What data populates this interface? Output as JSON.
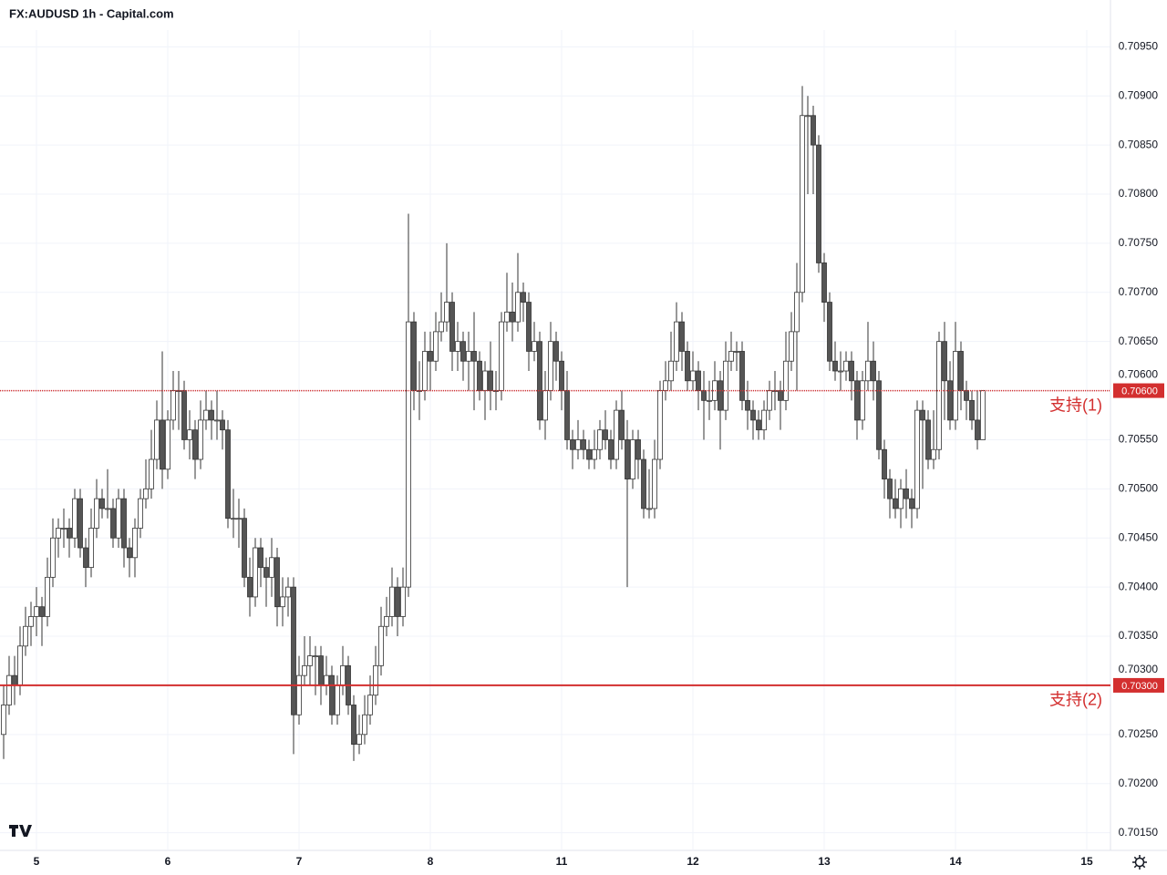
{
  "chart_data": {
    "type": "candlestick",
    "title": "FX:AUDUSD 1h - Capital.com",
    "up_color": "#ffffff",
    "down_color": "#555555",
    "wick_color": "#333333",
    "grid": true,
    "ylim": [
      0.70132,
      0.70967
    ],
    "yticks": [
      {
        "value": 0.7095,
        "label": "0.70950"
      },
      {
        "value": 0.709,
        "label": "0.70900"
      },
      {
        "value": 0.7085,
        "label": "0.70850"
      },
      {
        "value": 0.708,
        "label": "0.70800"
      },
      {
        "value": 0.7075,
        "label": "0.70750"
      },
      {
        "value": 0.707,
        "label": "0.70700"
      },
      {
        "value": 0.7065,
        "label": "0.70650"
      },
      {
        "value": 0.706,
        "label": "0.70600"
      },
      {
        "value": 0.7055,
        "label": "0.70550"
      },
      {
        "value": 0.705,
        "label": "0.70500"
      },
      {
        "value": 0.7045,
        "label": "0.70450"
      },
      {
        "value": 0.704,
        "label": "0.70400"
      },
      {
        "value": 0.7035,
        "label": "0.70350"
      },
      {
        "value": 0.703,
        "label": "0.70300"
      },
      {
        "value": 0.7025,
        "label": "0.70250"
      },
      {
        "value": 0.702,
        "label": "0.70200"
      },
      {
        "value": 0.7015,
        "label": "0.70150"
      }
    ],
    "xticks": [
      {
        "value": 6,
        "label": "5"
      },
      {
        "value": 30,
        "label": "6"
      },
      {
        "value": 54,
        "label": "7"
      },
      {
        "value": 78,
        "label": "8"
      },
      {
        "value": 102,
        "label": "11"
      },
      {
        "value": 126,
        "label": "12"
      },
      {
        "value": 150,
        "label": "13"
      },
      {
        "value": 174,
        "label": "14"
      },
      {
        "value": 198,
        "label": "15"
      }
    ],
    "hlines": [
      {
        "value": 0.706,
        "label": "支持(1)",
        "value_label": "0.70600",
        "color": "#d32f2f",
        "style": "dotted"
      },
      {
        "value": 0.703,
        "label": "支持(2)",
        "value_label": "0.70300",
        "color": "#d32f2f",
        "style": "solid"
      }
    ],
    "open": [
      0.7025,
      0.7028,
      0.7031,
      0.703,
      0.7034,
      0.7036,
      0.7037,
      0.7038,
      0.7037,
      0.7041,
      0.7045,
      0.7046,
      0.7046,
      0.7045,
      0.7049,
      0.7044,
      0.7042,
      0.7046,
      0.7049,
      0.7048,
      0.7048,
      0.7045,
      0.7049,
      0.7044,
      0.7043,
      0.7046,
      0.7049,
      0.705,
      0.7053,
      0.7057,
      0.7052,
      0.7057,
      0.706,
      0.706,
      0.7055,
      0.7056,
      0.7053,
      0.7057,
      0.7058,
      0.7057,
      0.7057,
      0.7056,
      0.7047,
      0.7047,
      0.7047,
      0.7041,
      0.7039,
      0.7044,
      0.7042,
      0.7041,
      0.7043,
      0.7038,
      0.7039,
      0.704,
      0.7027,
      0.7031,
      0.7032,
      0.7033,
      0.7033,
      0.703,
      0.7031,
      0.7027,
      0.703,
      0.7032,
      0.7028,
      0.7024,
      0.7025,
      0.7027,
      0.7029,
      0.7032,
      0.7036,
      0.7037,
      0.704,
      0.7037,
      0.704,
      0.7067,
      0.706,
      0.706,
      0.7064,
      0.7063,
      0.7066,
      0.7067,
      0.7069,
      0.7064,
      0.7065,
      0.7063,
      0.7064,
      0.7063,
      0.706,
      0.7062,
      0.706,
      0.706,
      0.7067,
      0.7068,
      0.7067,
      0.707,
      0.7069,
      0.7064,
      0.7065,
      0.7057,
      0.706,
      0.7065,
      0.7063,
      0.706,
      0.7055,
      0.7054,
      0.7055,
      0.7054,
      0.7053,
      0.7054,
      0.7056,
      0.7055,
      0.7053,
      0.7058,
      0.7055,
      0.7051,
      0.7055,
      0.7053,
      0.7048,
      0.7048,
      0.7053,
      0.706,
      0.7061,
      0.7063,
      0.7067,
      0.7064,
      0.7061,
      0.7062,
      0.706,
      0.7059,
      0.7059,
      0.7061,
      0.7058,
      0.7063,
      0.7064,
      0.7064,
      0.7059,
      0.7058,
      0.7057,
      0.7056,
      0.7058,
      0.706,
      0.706,
      0.7059,
      0.7063,
      0.7066,
      0.707,
      0.7088,
      0.7088,
      0.7085,
      0.7073,
      0.7069,
      0.7063,
      0.7062,
      0.7062,
      0.7063,
      0.7061,
      0.7057,
      0.7061,
      0.7063,
      0.7061,
      0.7054,
      0.7051,
      0.7049,
      0.7048,
      0.705,
      0.7049,
      0.7048,
      0.7058,
      0.7057,
      0.7053,
      0.7054,
      0.7065,
      0.7061,
      0.7057,
      0.7064,
      0.706,
      0.7059,
      0.7057,
      0.7055
    ],
    "high": [
      0.703,
      0.7033,
      0.7033,
      0.7036,
      0.7038,
      0.70385,
      0.704,
      0.7039,
      0.7043,
      0.7047,
      0.7047,
      0.7048,
      0.7047,
      0.705,
      0.705,
      0.7045,
      0.7048,
      0.7051,
      0.705,
      0.7052,
      0.7049,
      0.705,
      0.705,
      0.7045,
      0.7047,
      0.705,
      0.7053,
      0.7056,
      0.7059,
      0.7064,
      0.7058,
      0.7062,
      0.7062,
      0.7061,
      0.7058,
      0.7057,
      0.7059,
      0.706,
      0.7059,
      0.706,
      0.7058,
      0.7057,
      0.705,
      0.7049,
      0.7048,
      0.7043,
      0.7045,
      0.7045,
      0.7043,
      0.7045,
      0.7044,
      0.7041,
      0.7041,
      0.7041,
      0.7033,
      0.7035,
      0.7035,
      0.7034,
      0.7034,
      0.7033,
      0.7032,
      0.7031,
      0.7034,
      0.7033,
      0.7029,
      0.7027,
      0.7029,
      0.7031,
      0.7034,
      0.7038,
      0.7039,
      0.7042,
      0.7041,
      0.7042,
      0.7078,
      0.7068,
      0.7063,
      0.7066,
      0.7066,
      0.7068,
      0.707,
      0.7075,
      0.707,
      0.7067,
      0.7066,
      0.7066,
      0.7068,
      0.7064,
      0.7063,
      0.7065,
      0.7062,
      0.7068,
      0.7072,
      0.7071,
      0.7074,
      0.7071,
      0.707,
      0.7067,
      0.7066,
      0.7062,
      0.7067,
      0.7066,
      0.7064,
      0.7062,
      0.7056,
      0.7057,
      0.7056,
      0.7055,
      0.7056,
      0.7057,
      0.7058,
      0.7056,
      0.7059,
      0.706,
      0.7057,
      0.7056,
      0.7056,
      0.7054,
      0.7052,
      0.7055,
      0.7061,
      0.7063,
      0.7066,
      0.7069,
      0.7068,
      0.7065,
      0.7064,
      0.7063,
      0.7062,
      0.7061,
      0.7063,
      0.7062,
      0.7065,
      0.7066,
      0.7065,
      0.7065,
      0.7061,
      0.7059,
      0.7058,
      0.7059,
      0.7061,
      0.7062,
      0.7061,
      0.7066,
      0.7068,
      0.7073,
      0.7091,
      0.709,
      0.7089,
      0.7086,
      0.7074,
      0.707,
      0.7065,
      0.7064,
      0.7064,
      0.7064,
      0.7062,
      0.7062,
      0.7067,
      0.7065,
      0.7062,
      0.7055,
      0.7052,
      0.7051,
      0.7051,
      0.7052,
      0.705,
      0.7059,
      0.7059,
      0.7058,
      0.7058,
      0.7066,
      0.7067,
      0.7063,
      0.7067,
      0.7065,
      0.7061,
      0.706,
      0.706,
      0.706
    ],
    "low": [
      0.70225,
      0.7027,
      0.7028,
      0.7029,
      0.7033,
      0.7034,
      0.7035,
      0.7034,
      0.7036,
      0.704,
      0.7043,
      0.7044,
      0.7043,
      0.7044,
      0.7043,
      0.704,
      0.7041,
      0.7045,
      0.7047,
      0.7047,
      0.7044,
      0.7044,
      0.7042,
      0.7041,
      0.7041,
      0.7045,
      0.7048,
      0.7049,
      0.7052,
      0.705,
      0.7051,
      0.7056,
      0.7056,
      0.7054,
      0.7053,
      0.7051,
      0.7052,
      0.7056,
      0.7055,
      0.7055,
      0.7054,
      0.7046,
      0.7045,
      0.7044,
      0.704,
      0.7037,
      0.7038,
      0.704,
      0.7038,
      0.7039,
      0.7036,
      0.7036,
      0.7037,
      0.7023,
      0.7026,
      0.703,
      0.703,
      0.7029,
      0.7028,
      0.7029,
      0.7026,
      0.7026,
      0.7029,
      0.7027,
      0.70223,
      0.7023,
      0.7024,
      0.7026,
      0.7028,
      0.7031,
      0.7035,
      0.7036,
      0.7035,
      0.7036,
      0.7039,
      0.7058,
      0.7057,
      0.7059,
      0.706,
      0.7062,
      0.7065,
      0.7066,
      0.7062,
      0.7062,
      0.7061,
      0.706,
      0.7058,
      0.7059,
      0.7057,
      0.7058,
      0.7058,
      0.7059,
      0.7066,
      0.7065,
      0.7066,
      0.7067,
      0.7062,
      0.7063,
      0.7056,
      0.7055,
      0.7059,
      0.7061,
      0.7058,
      0.7054,
      0.7052,
      0.7053,
      0.7053,
      0.7052,
      0.7052,
      0.7053,
      0.7054,
      0.7052,
      0.7052,
      0.7054,
      0.704,
      0.705,
      0.7051,
      0.7047,
      0.7047,
      0.7047,
      0.7052,
      0.7059,
      0.706,
      0.7062,
      0.7062,
      0.706,
      0.706,
      0.7058,
      0.7055,
      0.7057,
      0.7058,
      0.7054,
      0.7057,
      0.7062,
      0.7062,
      0.7058,
      0.7056,
      0.7055,
      0.7055,
      0.7055,
      0.7057,
      0.7058,
      0.7056,
      0.7058,
      0.7062,
      0.706,
      0.7069,
      0.708,
      0.708,
      0.7072,
      0.7067,
      0.7062,
      0.7061,
      0.706,
      0.7061,
      0.7059,
      0.7055,
      0.7056,
      0.706,
      0.7059,
      0.7053,
      0.7049,
      0.7047,
      0.7047,
      0.7046,
      0.7047,
      0.7046,
      0.7047,
      0.705,
      0.7052,
      0.7052,
      0.7053,
      0.7057,
      0.7056,
      0.7056,
      0.7058,
      0.7057,
      0.7056,
      0.7054,
      0.7055
    ],
    "close": [
      0.7028,
      0.7031,
      0.703,
      0.7034,
      0.7036,
      0.7037,
      0.7038,
      0.7037,
      0.7041,
      0.7045,
      0.7046,
      0.7046,
      0.7045,
      0.7049,
      0.7044,
      0.7042,
      0.7046,
      0.7049,
      0.7048,
      0.7048,
      0.7045,
      0.7049,
      0.7044,
      0.7043,
      0.7046,
      0.7049,
      0.705,
      0.7053,
      0.7057,
      0.7052,
      0.7057,
      0.706,
      0.706,
      0.7055,
      0.7056,
      0.7053,
      0.7057,
      0.7058,
      0.7057,
      0.7057,
      0.7056,
      0.7047,
      0.7047,
      0.7047,
      0.7041,
      0.7039,
      0.7044,
      0.7042,
      0.7041,
      0.7043,
      0.7038,
      0.7039,
      0.704,
      0.7027,
      0.7031,
      0.7032,
      0.7033,
      0.7033,
      0.703,
      0.7031,
      0.7027,
      0.703,
      0.7032,
      0.7028,
      0.7024,
      0.7025,
      0.7027,
      0.7029,
      0.7032,
      0.7036,
      0.7037,
      0.704,
      0.7037,
      0.704,
      0.7067,
      0.706,
      0.706,
      0.7064,
      0.7063,
      0.7066,
      0.7067,
      0.7069,
      0.7064,
      0.7065,
      0.7063,
      0.7064,
      0.7063,
      0.706,
      0.7062,
      0.706,
      0.706,
      0.7067,
      0.7068,
      0.7067,
      0.707,
      0.7069,
      0.7064,
      0.7065,
      0.7057,
      0.706,
      0.7065,
      0.7063,
      0.706,
      0.7055,
      0.7054,
      0.7055,
      0.7054,
      0.7053,
      0.7054,
      0.7056,
      0.7055,
      0.7053,
      0.7058,
      0.7055,
      0.7051,
      0.7055,
      0.7053,
      0.7048,
      0.7048,
      0.7053,
      0.706,
      0.7061,
      0.7063,
      0.7067,
      0.7064,
      0.7061,
      0.7062,
      0.706,
      0.7059,
      0.7059,
      0.7061,
      0.7058,
      0.7063,
      0.7064,
      0.7064,
      0.7059,
      0.7058,
      0.7057,
      0.7056,
      0.7058,
      0.706,
      0.706,
      0.7059,
      0.7063,
      0.7066,
      0.707,
      0.7088,
      0.7088,
      0.7085,
      0.7073,
      0.7069,
      0.7063,
      0.7062,
      0.7062,
      0.7063,
      0.7061,
      0.7057,
      0.7061,
      0.7063,
      0.7061,
      0.7054,
      0.7051,
      0.7049,
      0.7048,
      0.705,
      0.7049,
      0.7048,
      0.7058,
      0.7057,
      0.7053,
      0.7054,
      0.7065,
      0.7061,
      0.7057,
      0.7064,
      0.706,
      0.7059,
      0.7057,
      0.7055,
      0.706
    ]
  }
}
